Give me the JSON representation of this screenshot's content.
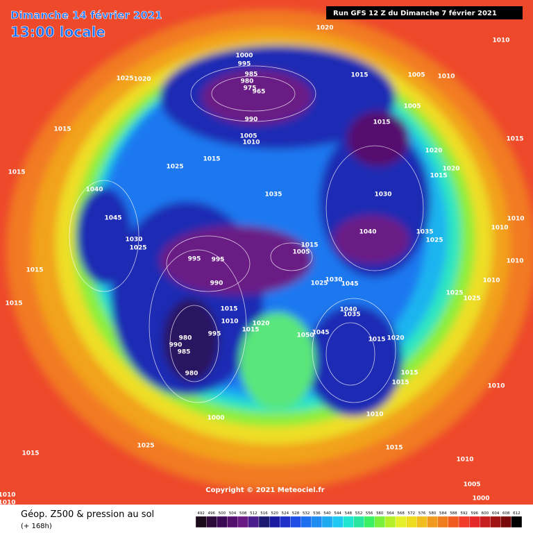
{
  "header": {
    "date": "Dimanche 14 février 2021",
    "time": "13:00 locale",
    "run": "Run GFS 12 Z du Dimanche 7 février 2021"
  },
  "copyright": "Copyright © 2021 Meteociel.fr",
  "footer": {
    "title": "Géop. Z500 & pression au sol",
    "lead": "(+ 168h)"
  },
  "scale": [
    492,
    496,
    500,
    504,
    508,
    512,
    516,
    520,
    524,
    528,
    532,
    536,
    540,
    544,
    548,
    552,
    556,
    560,
    564,
    568,
    572,
    576,
    580,
    584,
    588,
    592,
    596,
    600,
    604,
    608,
    612
  ],
  "pressure_labels": [
    1020,
    1000,
    995,
    985,
    980,
    975,
    965,
    990,
    1005,
    1010,
    1015,
    1005,
    1010,
    1010,
    1015,
    1005,
    1020,
    1020,
    1015,
    1015,
    1025,
    1020,
    1015,
    1015,
    1040,
    1045,
    1030,
    1025,
    1035,
    1030,
    1040,
    1035,
    1025,
    1025,
    1015,
    995,
    995,
    990,
    1005,
    1015,
    1025,
    1030,
    1045,
    1015,
    1010,
    1020,
    1015,
    1040,
    1035,
    1015,
    1020,
    1050,
    1045,
    980,
    990,
    985,
    980,
    995,
    1000,
    1025,
    1015,
    1015,
    1015,
    1010,
    1010,
    1010,
    1025,
    1025,
    1015,
    1015,
    1010,
    1015,
    1010,
    1010,
    1005,
    1000,
    1010,
    1010,
    1010
  ]
}
